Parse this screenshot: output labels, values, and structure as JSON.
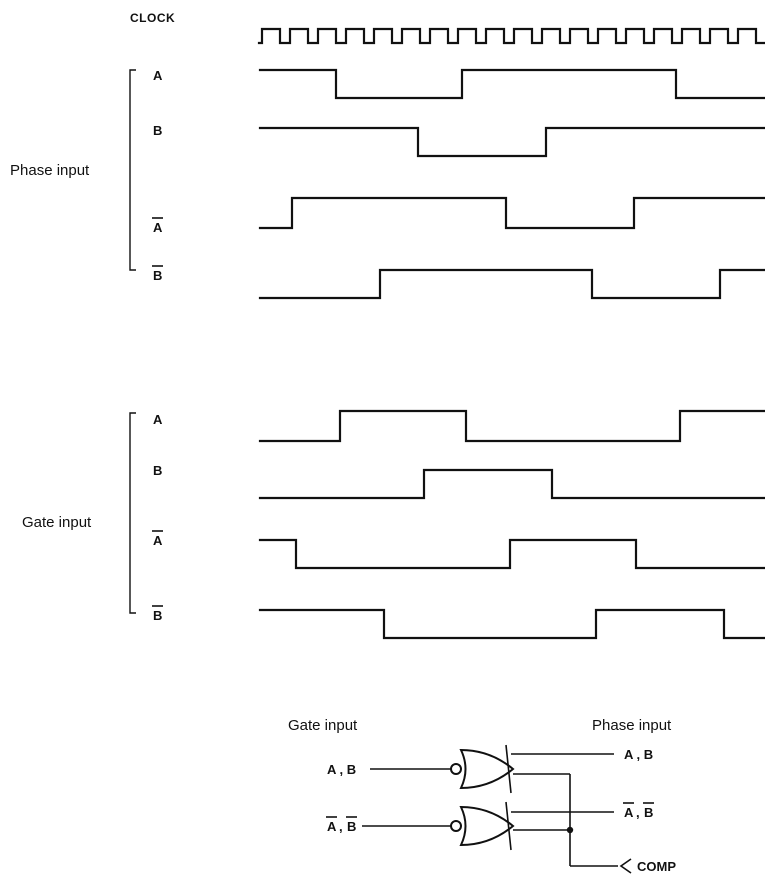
{
  "clock_label": "CLOCK",
  "phase_group": {
    "title": "Phase input",
    "signals": [
      {
        "label": "A",
        "bar": false
      },
      {
        "label": "B",
        "bar": false
      },
      {
        "label": "A",
        "bar": true
      },
      {
        "label": "B",
        "bar": true
      }
    ]
  },
  "gate_group": {
    "title": "Gate input",
    "signals": [
      {
        "label": "A",
        "bar": false
      },
      {
        "label": "B",
        "bar": false
      },
      {
        "label": "A",
        "bar": true
      },
      {
        "label": "B",
        "bar": true
      }
    ]
  },
  "schematic": {
    "left_title": "Gate input",
    "right_title": "Phase input",
    "in_ab": "A , B",
    "in_ab_bar_a": "A",
    "in_ab_bar_b": "B",
    "out_ab": "A , B",
    "out_ab_bar_a": "A",
    "out_ab_bar_b": "B",
    "comp": "COMP"
  }
}
